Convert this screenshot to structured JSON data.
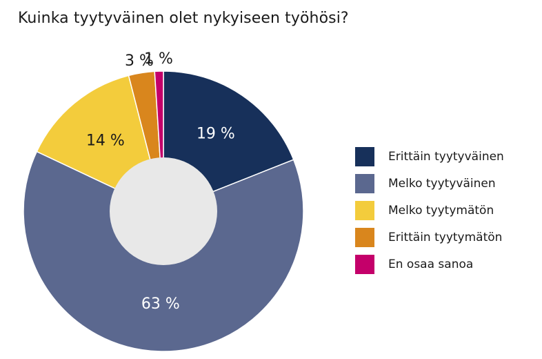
{
  "chart_data": {
    "type": "pie",
    "title": "Kuinka tyytyväinen olet nykyiseen työhösi?",
    "donut": true,
    "categories": [
      "Erittäin tyytyväinen",
      "Melko tyytyväinen",
      "Melko tyytymätön",
      "Erittäin tyytymätön",
      "En osaa sanoa"
    ],
    "values": [
      19,
      63,
      14,
      3,
      1
    ],
    "value_labels": [
      "19 %",
      "63 %",
      "14 %",
      "3 %",
      "1 %"
    ],
    "colors": [
      "#17305a",
      "#5b688f",
      "#f3cc3c",
      "#d9861d",
      "#c4006a"
    ],
    "hole_color": "#e8e8e8",
    "legend_position": "right"
  }
}
